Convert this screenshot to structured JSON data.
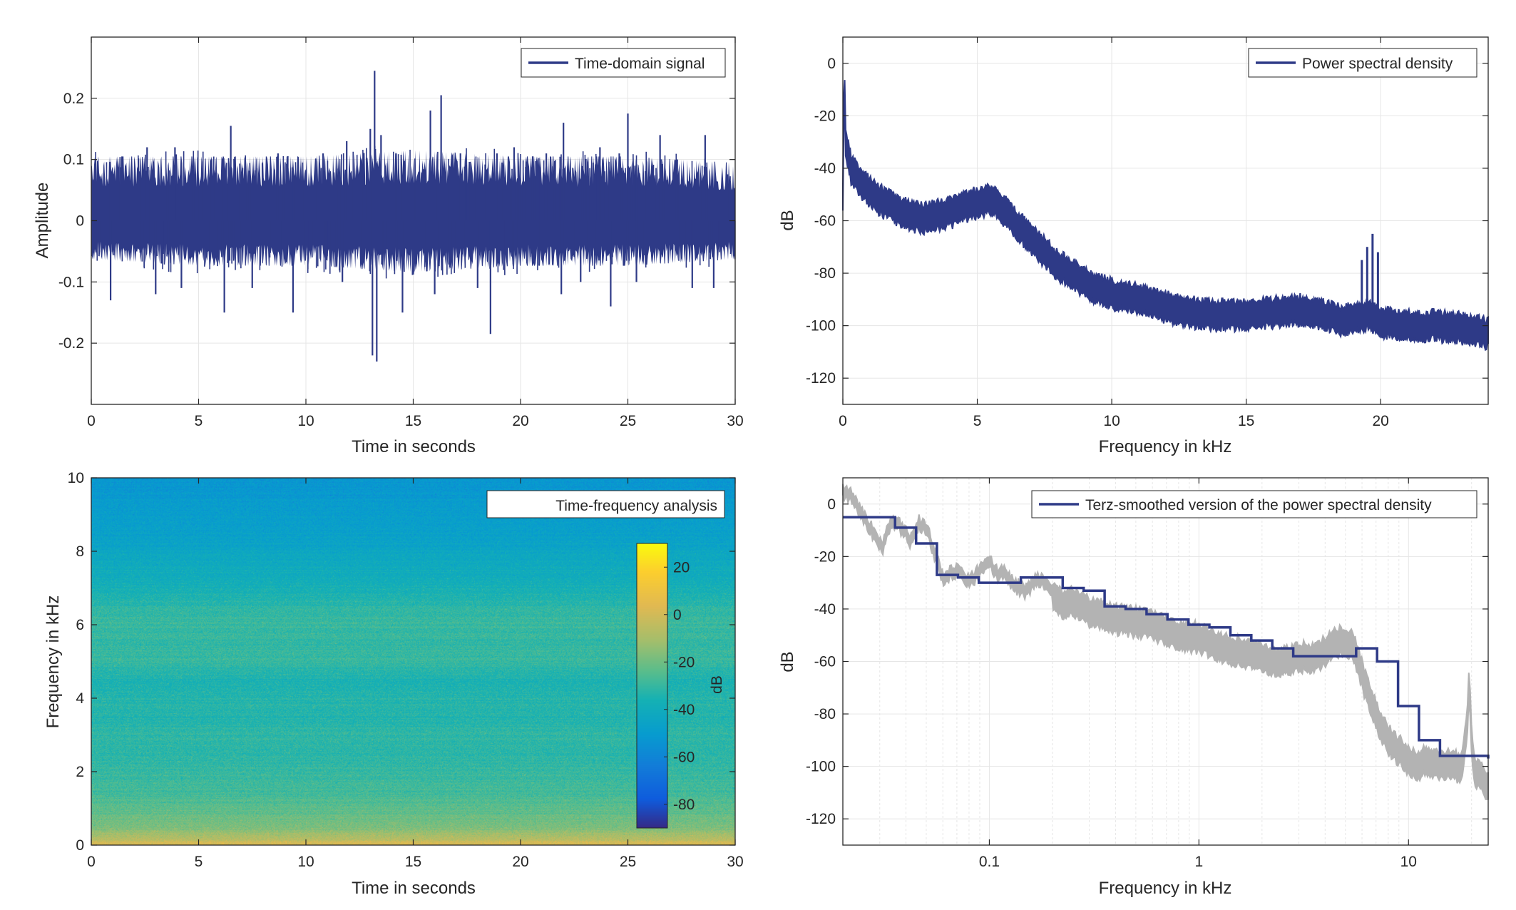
{
  "chart_data": [
    {
      "id": "time-domain",
      "type": "line",
      "xlabel": "Time in seconds",
      "ylabel": "Amplitude",
      "xlim": [
        0,
        30
      ],
      "ylim": [
        -0.3,
        0.3
      ],
      "xticks": [
        0,
        5,
        10,
        15,
        20,
        25,
        30
      ],
      "yticks": [
        -0.2,
        -0.1,
        0,
        0.1,
        0.2
      ],
      "ytick_labels": [
        "-0.2",
        "-0.1",
        "0",
        "0.1",
        "0.2"
      ],
      "grid": true,
      "legend_position": "top-right",
      "series": [
        {
          "name": "Time-domain signal",
          "color": "#2e3a87",
          "description": "dense noise signal, envelope approx. ±0.08",
          "envelope": {
            "x": [
              0,
              5,
              10,
              15,
              20,
              25,
              30
            ],
            "max": [
              0.1,
              0.1,
              0.1,
              0.11,
              0.1,
              0.1,
              0.09
            ],
            "min": [
              -0.06,
              -0.07,
              -0.07,
              -0.08,
              -0.07,
              -0.07,
              -0.06
            ]
          },
          "peaks": [
            {
              "x": 0.2,
              "y": 0.1
            },
            {
              "x": 0.9,
              "y": -0.13
            },
            {
              "x": 2.6,
              "y": 0.12
            },
            {
              "x": 3.0,
              "y": -0.12
            },
            {
              "x": 3.9,
              "y": 0.12
            },
            {
              "x": 4.2,
              "y": -0.11
            },
            {
              "x": 5.6,
              "y": 0.1
            },
            {
              "x": 6.2,
              "y": -0.15
            },
            {
              "x": 6.5,
              "y": 0.155
            },
            {
              "x": 7.5,
              "y": -0.11
            },
            {
              "x": 8.7,
              "y": 0.11
            },
            {
              "x": 9.4,
              "y": -0.15
            },
            {
              "x": 10.8,
              "y": 0.11
            },
            {
              "x": 11.7,
              "y": -0.1
            },
            {
              "x": 11.9,
              "y": 0.13
            },
            {
              "x": 13.0,
              "y": 0.15
            },
            {
              "x": 13.1,
              "y": -0.22
            },
            {
              "x": 13.2,
              "y": 0.245
            },
            {
              "x": 13.3,
              "y": -0.23
            },
            {
              "x": 13.5,
              "y": 0.14
            },
            {
              "x": 14.2,
              "y": 0.11
            },
            {
              "x": 14.5,
              "y": -0.15
            },
            {
              "x": 15.8,
              "y": 0.18
            },
            {
              "x": 16.0,
              "y": -0.12
            },
            {
              "x": 16.3,
              "y": 0.205
            },
            {
              "x": 17.2,
              "y": 0.11
            },
            {
              "x": 18.0,
              "y": -0.11
            },
            {
              "x": 18.6,
              "y": -0.185
            },
            {
              "x": 18.9,
              "y": 0.11
            },
            {
              "x": 19.7,
              "y": 0.12
            },
            {
              "x": 21.2,
              "y": 0.11
            },
            {
              "x": 21.9,
              "y": -0.12
            },
            {
              "x": 22.0,
              "y": 0.16
            },
            {
              "x": 22.8,
              "y": -0.1
            },
            {
              "x": 23.7,
              "y": 0.12
            },
            {
              "x": 24.2,
              "y": -0.14
            },
            {
              "x": 24.6,
              "y": 0.11
            },
            {
              "x": 25.0,
              "y": 0.175
            },
            {
              "x": 25.4,
              "y": -0.1
            },
            {
              "x": 26.5,
              "y": 0.14
            },
            {
              "x": 27.3,
              "y": 0.1
            },
            {
              "x": 28.0,
              "y": -0.11
            },
            {
              "x": 28.6,
              "y": 0.14
            },
            {
              "x": 29.0,
              "y": -0.11
            }
          ]
        }
      ]
    },
    {
      "id": "psd",
      "type": "line",
      "xlabel": "Frequency in kHz",
      "ylabel": "dB",
      "xlim": [
        0,
        24
      ],
      "ylim": [
        -130,
        10
      ],
      "xticks": [
        0,
        5,
        10,
        15,
        20
      ],
      "yticks": [
        -120,
        -100,
        -80,
        -60,
        -40,
        -20,
        0
      ],
      "grid": true,
      "legend_position": "top-right",
      "series": [
        {
          "name": "Power spectral density",
          "color": "#2e3a87",
          "x": [
            0,
            0.05,
            0.1,
            0.2,
            0.3,
            0.6,
            1.0,
            1.5,
            2.0,
            2.5,
            3.0,
            3.5,
            4.0,
            4.5,
            5.0,
            5.5,
            6.0,
            6.5,
            7.0,
            7.5,
            8.0,
            8.5,
            9.0,
            9.5,
            10.0,
            11.0,
            12.0,
            13.0,
            14.0,
            15.0,
            16.0,
            17.0,
            17.5,
            18.0,
            18.5,
            19.0,
            19.5,
            20.0,
            21.0,
            22.0,
            23.0,
            24.0
          ],
          "y": [
            -50,
            0,
            -30,
            -35,
            -40,
            -45,
            -49,
            -53,
            -56,
            -58,
            -59,
            -58,
            -57,
            -55,
            -53,
            -52,
            -56,
            -62,
            -67,
            -72,
            -77,
            -80,
            -84,
            -86,
            -88,
            -90,
            -93,
            -95,
            -96,
            -96,
            -95,
            -94,
            -95,
            -96,
            -98,
            -97,
            -96,
            -99,
            -100,
            -100,
            -101,
            -103
          ],
          "band": 5,
          "spikes": [
            {
              "x": 19.3,
              "y": -75
            },
            {
              "x": 19.5,
              "y": -70
            },
            {
              "x": 19.7,
              "y": -65
            },
            {
              "x": 19.9,
              "y": -72
            }
          ]
        }
      ]
    },
    {
      "id": "spectrogram",
      "type": "heatmap",
      "xlabel": "Time in seconds",
      "ylabel": "Frequency in kHz",
      "xlim": [
        0,
        30
      ],
      "ylim": [
        0,
        10
      ],
      "xticks": [
        0,
        5,
        10,
        15,
        20,
        25,
        30
      ],
      "yticks": [
        0,
        2,
        4,
        6,
        8,
        10
      ],
      "title_box": "Time-frequency analysis",
      "colorbar": {
        "label": "dB",
        "range": [
          -90,
          30
        ],
        "ticks": [
          -80,
          -60,
          -40,
          -20,
          0,
          20
        ],
        "colormap": "parula"
      },
      "freq_profile_khz": [
        0,
        0.2,
        0.5,
        1,
        1.5,
        2,
        2.5,
        3,
        3.5,
        4,
        4.5,
        5,
        5.5,
        6,
        6.5,
        7,
        7.5,
        8,
        8.5,
        9,
        9.5,
        10
      ],
      "freq_profile_db": [
        5,
        -8,
        -18,
        -24,
        -28,
        -30,
        -32,
        -31,
        -34,
        -33,
        -35,
        -30,
        -31,
        -29,
        -32,
        -37,
        -40,
        -44,
        -47,
        -49,
        -51,
        -53
      ]
    },
    {
      "id": "terz",
      "type": "line",
      "xlabel": "Frequency in kHz",
      "ylabel": "dB",
      "xscale": "log",
      "xlim": [
        0.02,
        24
      ],
      "ylim": [
        -130,
        10
      ],
      "xticks": [
        0.1,
        1,
        10
      ],
      "xtick_labels": [
        "0.1",
        "1",
        "10"
      ],
      "yticks": [
        -120,
        -100,
        -80,
        -60,
        -40,
        -20,
        0
      ],
      "grid": true,
      "legend_position": "top-right",
      "series": [
        {
          "name": "Terz-smoothed version of the power spectral density",
          "color": "#2e3a87",
          "step_edges": [
            0.02,
            0.0355,
            0.0447,
            0.0562,
            0.0708,
            0.0891,
            0.1122,
            0.1413,
            0.1778,
            0.2239,
            0.2818,
            0.3548,
            0.4467,
            0.5623,
            0.7079,
            0.8913,
            1.122,
            1.413,
            1.778,
            2.239,
            2.818,
            3.548,
            4.467,
            5.623,
            7.079,
            8.913,
            11.22,
            14.13,
            17.78,
            24
          ],
          "values": [
            -5,
            -9,
            -15,
            -27,
            -28,
            -30,
            -30,
            -28,
            -28,
            -32,
            -33,
            -39,
            -40,
            -42,
            -44,
            -46,
            -47,
            -50,
            -52,
            -55,
            -58,
            -58,
            -58,
            -55,
            -60,
            -77,
            -90,
            -96,
            -96,
            -97
          ]
        },
        {
          "name": "",
          "color": "#b3b3b3",
          "x": [
            0.02,
            0.022,
            0.025,
            0.028,
            0.031,
            0.034,
            0.038,
            0.042,
            0.046,
            0.05,
            0.055,
            0.06,
            0.07,
            0.08,
            0.09,
            0.1,
            0.11,
            0.12,
            0.13,
            0.15,
            0.17,
            0.2,
            0.22,
            0.25,
            0.3,
            0.35,
            0.4,
            0.5,
            0.6,
            0.7,
            0.8,
            1.0,
            1.2,
            1.5,
            2.0,
            2.5,
            3.0,
            3.5,
            4.0,
            4.5,
            5.0,
            5.5,
            6.0,
            6.5,
            7.0,
            7.5,
            8.0,
            9.0,
            10.0,
            11.0,
            12.0,
            14.0,
            16.0,
            18.0,
            19.0,
            19.5,
            20.0,
            20.5,
            21.0,
            22.0,
            24.0
          ],
          "y": [
            5,
            3,
            -5,
            -11,
            -17,
            -6,
            -9,
            -14,
            -7,
            -9,
            -19,
            -28,
            -25,
            -29,
            -26,
            -22,
            -27,
            -26,
            -31,
            -33,
            -28,
            -34,
            -38,
            -37,
            -41,
            -42,
            -44,
            -45,
            -46,
            -48,
            -50,
            -51,
            -54,
            -56,
            -59,
            -60,
            -58,
            -59,
            -56,
            -53,
            -52,
            -55,
            -65,
            -74,
            -80,
            -86,
            -90,
            -94,
            -98,
            -100,
            -98,
            -100,
            -99,
            -101,
            -85,
            -67,
            -90,
            -100,
            -102,
            -104,
            -108
          ],
          "band": 5
        }
      ]
    }
  ]
}
